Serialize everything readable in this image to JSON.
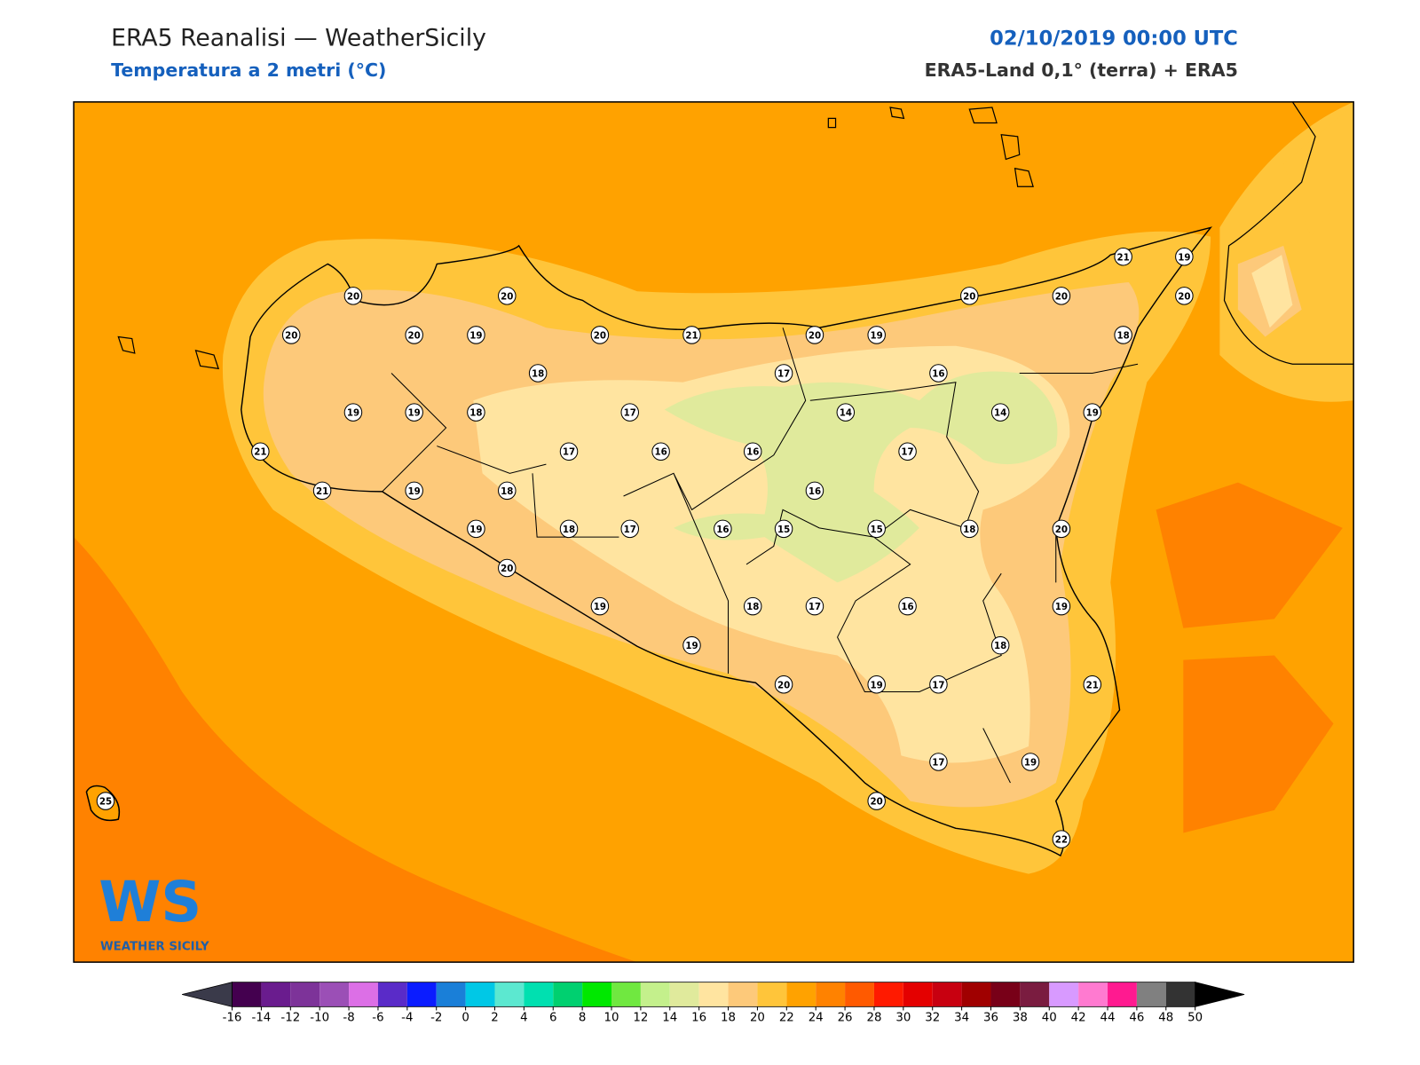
{
  "header": {
    "title": "ERA5 Reanalisi — WeatherSicily",
    "subtitle": "Temperatura a 2 metri (°C)",
    "date": "02/10/2019 00:00 UTC",
    "source": "ERA5-Land 0,1° (terra) + ERA5"
  },
  "stations": [
    "20",
    "20",
    "20",
    "20",
    "19",
    "20",
    "21",
    "20",
    "19",
    "20",
    "20",
    "21",
    "19",
    "20",
    "18",
    "18",
    "17",
    "16",
    "19",
    "19",
    "18",
    "17",
    "14",
    "14",
    "19",
    "21",
    "17",
    "16",
    "16",
    "17",
    "21",
    "19",
    "18",
    "16",
    "19",
    "18",
    "17",
    "16",
    "15",
    "15",
    "18",
    "20",
    "20",
    "19",
    "18",
    "17",
    "16",
    "19",
    "19",
    "18",
    "20",
    "19",
    "17",
    "21",
    "17",
    "19",
    "20",
    "22",
    "25"
  ],
  "logo": {
    "mark": "WS",
    "name": "WEATHER SICILY"
  },
  "colorbar": {
    "ticks": [
      -16,
      -14,
      -12,
      -10,
      -8,
      -6,
      -4,
      -2,
      0,
      2,
      4,
      6,
      8,
      10,
      12,
      14,
      16,
      18,
      20,
      22,
      24,
      26,
      28,
      30,
      32,
      34,
      36,
      38,
      40,
      42,
      44,
      46,
      48,
      50
    ],
    "colors": [
      "#44004f",
      "#6a1c8e",
      "#7d3399",
      "#9b4fb6",
      "#dc6fe6",
      "#5a2bc8",
      "#0b1cff",
      "#1a7fd8",
      "#00c8e6",
      "#5ce8d0",
      "#00e0b0",
      "#00d070",
      "#00e800",
      "#70e840",
      "#c4f08c",
      "#e0ea9c",
      "#ffe4a0",
      "#fdc97a",
      "#ffc53a",
      "#ffa200",
      "#ff8200",
      "#ff5a00",
      "#ff1a00",
      "#e40000",
      "#c80010",
      "#a00000",
      "#780018",
      "#7a1c40",
      "#d89aff",
      "#ff7ad0",
      "#ff1a90",
      "#808080",
      "#333333"
    ],
    "under_color": "#3a3a4a",
    "over_color": "#000000"
  }
}
